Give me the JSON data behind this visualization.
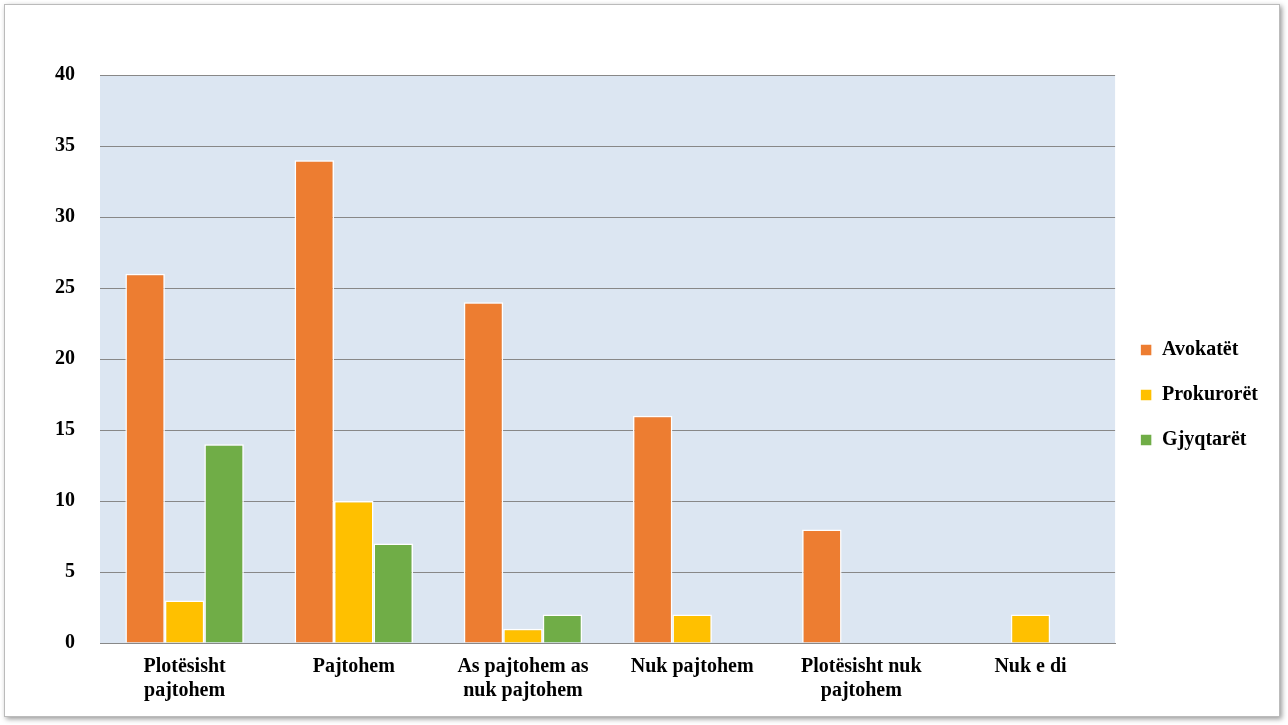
{
  "chart_data": {
    "type": "bar",
    "categories": [
      "Plotësisht pajtohem",
      "Pajtohem",
      "As pajtohem as nuk pajtohem",
      "Nuk pajtohem",
      "Plotësisht nuk pajtohem",
      "Nuk e di"
    ],
    "series": [
      {
        "name": "Avokatët",
        "color": "#ed7d31",
        "values": [
          26,
          34,
          24,
          16,
          8,
          0
        ]
      },
      {
        "name": "Prokurorët",
        "color": "#ffc000",
        "values": [
          3,
          10,
          1,
          2,
          0,
          2
        ]
      },
      {
        "name": "Gjyqtarët",
        "color": "#70ad47",
        "values": [
          14,
          7,
          2,
          0,
          0,
          0
        ]
      }
    ],
    "ylim": [
      0,
      40
    ],
    "yticks": [
      0,
      5,
      10,
      15,
      20,
      25,
      30,
      35,
      40
    ],
    "grid": "y",
    "legend": "right"
  }
}
